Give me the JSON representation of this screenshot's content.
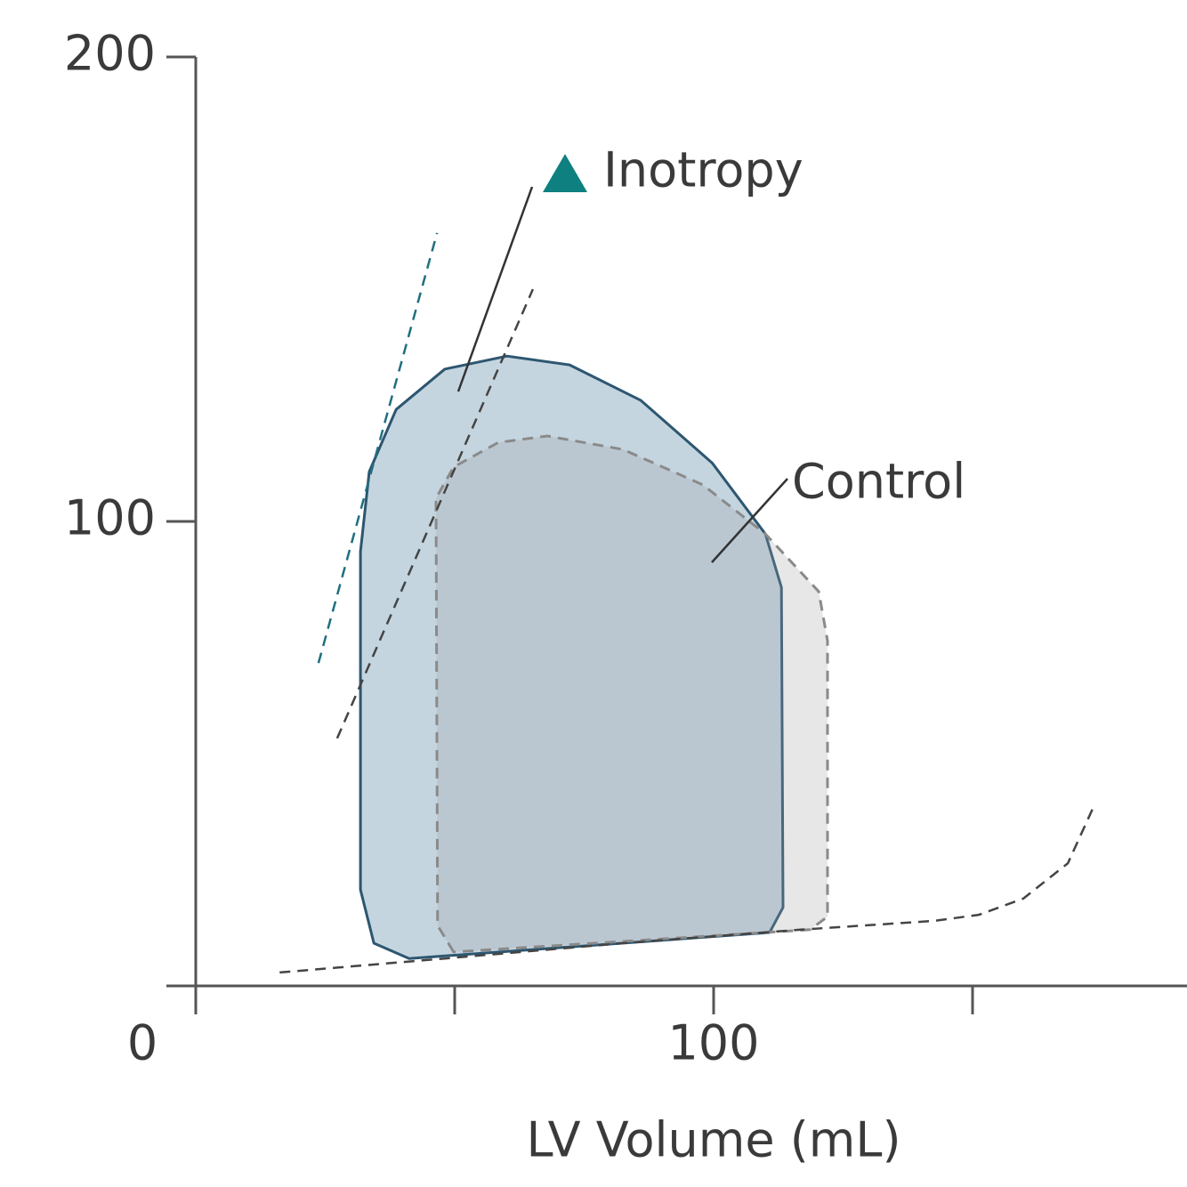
{
  "chart_data": {
    "type": "line",
    "xlabel": "LV Volume (mL)",
    "xlim": [
      0,
      190
    ],
    "ylim": [
      0,
      200
    ],
    "xticks": [
      0,
      100
    ],
    "x_minor_ticks": [
      50,
      150
    ],
    "yticks": [
      100,
      200
    ],
    "series": [
      {
        "name": "Inotropy",
        "color": "#2d5670",
        "fill": "#c4d5df",
        "dash": false,
        "marker_color": "#0e8080",
        "x": [
          41.2,
          34.4,
          31.8,
          31.8,
          33.5,
          38.7,
          48.1,
          60.1,
          72.2,
          85.9,
          99.7,
          110.0,
          113.1,
          113.4,
          110.8,
          41.2
        ],
        "y": [
          5.9,
          9.2,
          20.7,
          93.5,
          110.7,
          124.1,
          132.8,
          135.6,
          133.7,
          126.1,
          112.6,
          97.3,
          85.8,
          16.9,
          11.5,
          5.9
        ]
      },
      {
        "name": "Control",
        "color": "#8a8a8a",
        "fill": "rgba(160,160,165,0.25)",
        "dash": true,
        "x": [
          49.8,
          46.7,
          46.4,
          49.8,
          58.4,
          67.9,
          82.5,
          97.9,
          110.0,
          120.3,
          122.0,
          122.0,
          118.6,
          49.8
        ],
        "y": [
          7.3,
          13.0,
          105.0,
          111.7,
          117.0,
          118.4,
          115.5,
          107.9,
          97.3,
          84.9,
          74.3,
          14.9,
          12.1,
          7.3
        ]
      }
    ],
    "reference_lines": [
      {
        "color": "#1f6f80",
        "x": [
          23.7,
          46.6
        ],
        "y": [
          69.5,
          162.1
        ]
      },
      {
        "color": "#444444",
        "x": [
          27.3,
          65.1
        ],
        "y": [
          53.3,
          150.0
        ]
      },
      {
        "color": "#444444",
        "x": [
          16.2,
          48.1,
          82.5,
          116.8,
          142.6,
          151.2,
          159.8,
          168.4,
          173.5
        ],
        "y": [
          2.9,
          5.9,
          9.2,
          12.1,
          14.0,
          15.3,
          18.8,
          26.4,
          38.9
        ]
      }
    ]
  }
}
